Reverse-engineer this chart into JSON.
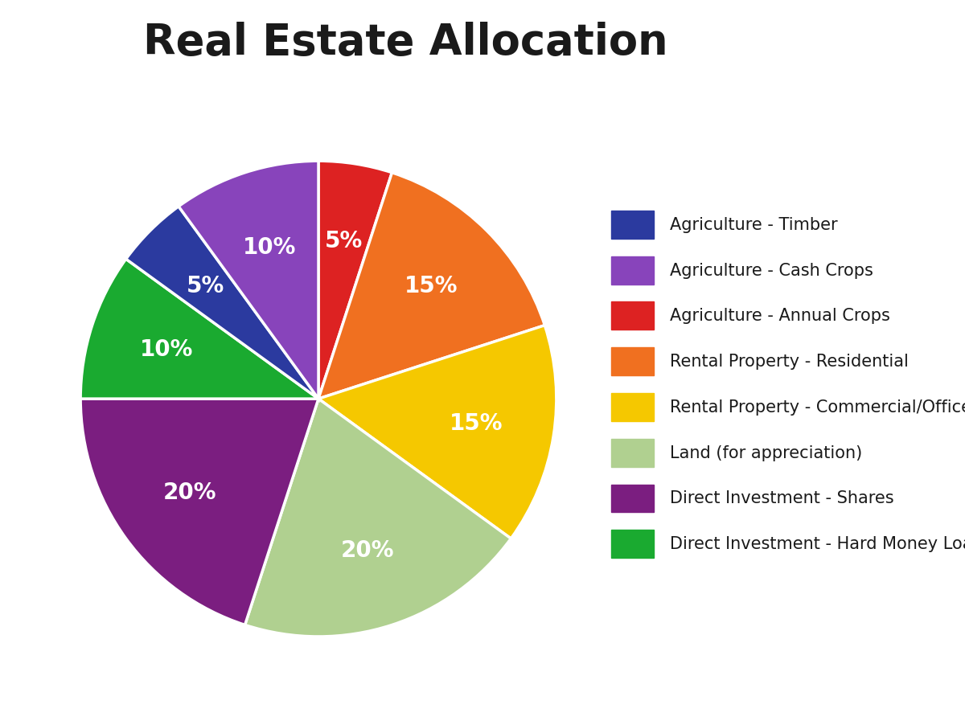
{
  "title": "Real Estate Allocation",
  "title_fontsize": 38,
  "title_fontweight": "bold",
  "title_color": "#1a1a1a",
  "slices_ordered": [
    {
      "label": "Agriculture - Annual Crops",
      "value": 5,
      "color": "#DD2222"
    },
    {
      "label": "Rental Property - Residential",
      "value": 15,
      "color": "#F07020"
    },
    {
      "label": "Rental Property - Commercial/Office",
      "value": 15,
      "color": "#F5C800"
    },
    {
      "label": "Land (for appreciation)",
      "value": 20,
      "color": "#B0D090"
    },
    {
      "label": "Direct Investment - Shares",
      "value": 20,
      "color": "#7B1E80"
    },
    {
      "label": "Direct Investment - Hard Money Loan",
      "value": 10,
      "color": "#1AAA30"
    },
    {
      "label": "Agriculture - Timber",
      "value": 5,
      "color": "#2B3A9F"
    },
    {
      "label": "Agriculture - Cash Crops",
      "value": 10,
      "color": "#8844BB"
    }
  ],
  "legend_order": [
    {
      "label": "Agriculture - Timber",
      "color": "#2B3A9F"
    },
    {
      "label": "Agriculture - Cash Crops",
      "color": "#8844BB"
    },
    {
      "label": "Agriculture - Annual Crops",
      "color": "#DD2222"
    },
    {
      "label": "Rental Property - Residential",
      "color": "#F07020"
    },
    {
      "label": "Rental Property - Commercial/Office",
      "color": "#F5C800"
    },
    {
      "label": "Land (for appreciation)",
      "color": "#B0D090"
    },
    {
      "label": "Direct Investment - Shares",
      "color": "#7B1E80"
    },
    {
      "label": "Direct Investment - Hard Money Loan",
      "color": "#1AAA30"
    }
  ],
  "pct_text_color": "#FFFFFF",
  "pct_fontsize": 20,
  "pct_fontweight": "bold",
  "legend_fontsize": 15,
  "background_color": "#FFFFFF",
  "startangle": 90
}
